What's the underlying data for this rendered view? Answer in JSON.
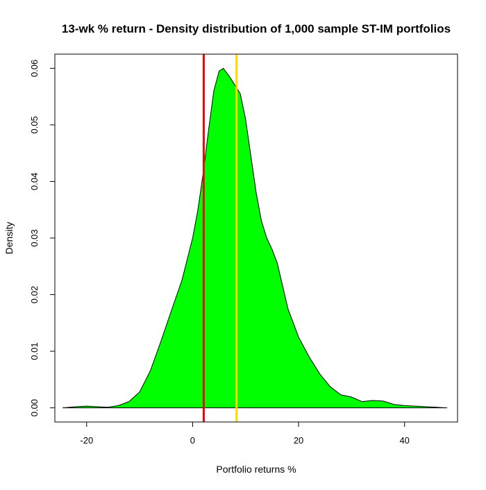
{
  "chart_data": {
    "type": "area",
    "title": "13-wk % return - Density distribution of 1,000 sample ST-IM portfolios",
    "xlabel": "Portfolio returns %",
    "ylabel": "Density",
    "xlim": [
      -26,
      50
    ],
    "ylim": [
      -0.0025,
      0.0625
    ],
    "x_ticks": [
      -20,
      0,
      20,
      40
    ],
    "y_ticks": [
      0.0,
      0.01,
      0.02,
      0.03,
      0.04,
      0.05,
      0.06
    ],
    "x_tick_labels": [
      "-20",
      "0",
      "20",
      "40"
    ],
    "y_tick_labels": [
      "0.00",
      "0.01",
      "0.02",
      "0.03",
      "0.04",
      "0.05",
      "0.06"
    ],
    "fill_color": "#00ff00",
    "line_color": "#000000",
    "grid": false,
    "series": [
      {
        "x": [
          -24.5,
          -22,
          -20,
          -18,
          -16,
          -14,
          -12,
          -10,
          -8,
          -6,
          -4,
          -2,
          0,
          1,
          2,
          3,
          4,
          5,
          5.8,
          7,
          8,
          9,
          10,
          11,
          12,
          13,
          14,
          15,
          16,
          17,
          18,
          20,
          22,
          24,
          26,
          28,
          30,
          32,
          34,
          36,
          38,
          40,
          42,
          44,
          46,
          48
        ],
        "y": [
          0.0,
          0.0002,
          0.0003,
          0.0002,
          0.0001,
          0.0004,
          0.0011,
          0.0028,
          0.0065,
          0.0117,
          0.0172,
          0.0226,
          0.03,
          0.035,
          0.0415,
          0.049,
          0.056,
          0.0595,
          0.06,
          0.0585,
          0.057,
          0.0555,
          0.051,
          0.0445,
          0.038,
          0.033,
          0.03,
          0.028,
          0.0255,
          0.0215,
          0.0175,
          0.0125,
          0.009,
          0.006,
          0.0037,
          0.0023,
          0.0019,
          0.0011,
          0.0013,
          0.0012,
          0.0006,
          0.0004,
          0.0003,
          0.0002,
          0.0001,
          0.0
        ]
      }
    ],
    "vlines": [
      {
        "x": 2.1,
        "color": "#ff0000"
      },
      {
        "x": 8.3,
        "color": "#ffd700"
      }
    ]
  }
}
